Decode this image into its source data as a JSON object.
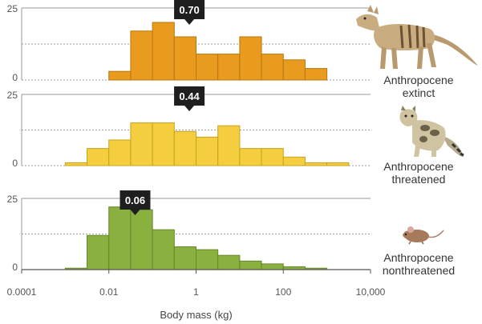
{
  "chart_data": {
    "type": "bar",
    "xlabel": "Body mass (kg)",
    "x_scale": "log10",
    "x_ticks": [
      0.0001,
      0.01,
      1,
      100,
      10000
    ],
    "x_tick_labels": [
      "0.0001",
      "0.01",
      "1",
      "100",
      "10,000"
    ],
    "xlim": [
      0.0001,
      10000
    ],
    "panels": [
      {
        "name": "Anthropocene extinct",
        "label_lines": [
          "Anthropocene",
          "extinct"
        ],
        "animal_icon": "thylacine-icon",
        "color": "#E89B1E",
        "stroke": "#b8770f",
        "ylim": [
          0,
          25
        ],
        "y_ticks": [
          0,
          25
        ],
        "callout": "0.70",
        "callout_x": 0.7,
        "bins": [
          {
            "x0": 0.01,
            "x1": 0.0316,
            "value": 3
          },
          {
            "x0": 0.0316,
            "x1": 0.1,
            "value": 17
          },
          {
            "x0": 0.1,
            "x1": 0.316,
            "value": 20
          },
          {
            "x0": 0.316,
            "x1": 1,
            "value": 15
          },
          {
            "x0": 1,
            "x1": 3.16,
            "value": 9
          },
          {
            "x0": 3.16,
            "x1": 10,
            "value": 9
          },
          {
            "x0": 10,
            "x1": 31.6,
            "value": 15
          },
          {
            "x0": 31.6,
            "x1": 100,
            "value": 9
          },
          {
            "x0": 100,
            "x1": 316,
            "value": 7
          },
          {
            "x0": 316,
            "x1": 1000,
            "value": 4
          }
        ]
      },
      {
        "name": "Anthropocene threatened",
        "label_lines": [
          "Anthropocene",
          "threatened"
        ],
        "animal_icon": "clouded-leopard-icon",
        "color": "#F4CE3E",
        "stroke": "#c7a21c",
        "ylim": [
          0,
          25
        ],
        "y_ticks": [
          0,
          25
        ],
        "callout": "0.44",
        "callout_x": 0.7,
        "bins": [
          {
            "x0": 0.001,
            "x1": 0.00316,
            "value": 1
          },
          {
            "x0": 0.00316,
            "x1": 0.01,
            "value": 6
          },
          {
            "x0": 0.01,
            "x1": 0.0316,
            "value": 9
          },
          {
            "x0": 0.0316,
            "x1": 0.1,
            "value": 15
          },
          {
            "x0": 0.1,
            "x1": 0.316,
            "value": 15
          },
          {
            "x0": 0.316,
            "x1": 1,
            "value": 12
          },
          {
            "x0": 1,
            "x1": 3.16,
            "value": 10
          },
          {
            "x0": 3.16,
            "x1": 10,
            "value": 14
          },
          {
            "x0": 10,
            "x1": 31.6,
            "value": 6
          },
          {
            "x0": 31.6,
            "x1": 100,
            "value": 6
          },
          {
            "x0": 100,
            "x1": 316,
            "value": 3
          },
          {
            "x0": 316,
            "x1": 1000,
            "value": 1
          },
          {
            "x0": 1000,
            "x1": 3162,
            "value": 1
          }
        ]
      },
      {
        "name": "Anthropocene nonthreatened",
        "label_lines": [
          "Anthropocene",
          "nonthreatened"
        ],
        "animal_icon": "mouse-icon",
        "color": "#8AB040",
        "stroke": "#66872a",
        "ylim": [
          0,
          25
        ],
        "y_ticks": [
          0,
          25
        ],
        "callout": "0.06",
        "callout_x": 0.04,
        "bins": [
          {
            "x0": 0.001,
            "x1": 0.00316,
            "value": 0.5
          },
          {
            "x0": 0.00316,
            "x1": 0.01,
            "value": 12
          },
          {
            "x0": 0.01,
            "x1": 0.0316,
            "value": 22
          },
          {
            "x0": 0.0316,
            "x1": 0.1,
            "value": 21
          },
          {
            "x0": 0.1,
            "x1": 0.316,
            "value": 14
          },
          {
            "x0": 0.316,
            "x1": 1,
            "value": 8
          },
          {
            "x0": 1,
            "x1": 3.16,
            "value": 7
          },
          {
            "x0": 3.16,
            "x1": 10,
            "value": 5
          },
          {
            "x0": 10,
            "x1": 31.6,
            "value": 3
          },
          {
            "x0": 31.6,
            "x1": 100,
            "value": 2
          },
          {
            "x0": 100,
            "x1": 316,
            "value": 1
          },
          {
            "x0": 316,
            "x1": 1000,
            "value": 0.5
          }
        ]
      }
    ]
  }
}
